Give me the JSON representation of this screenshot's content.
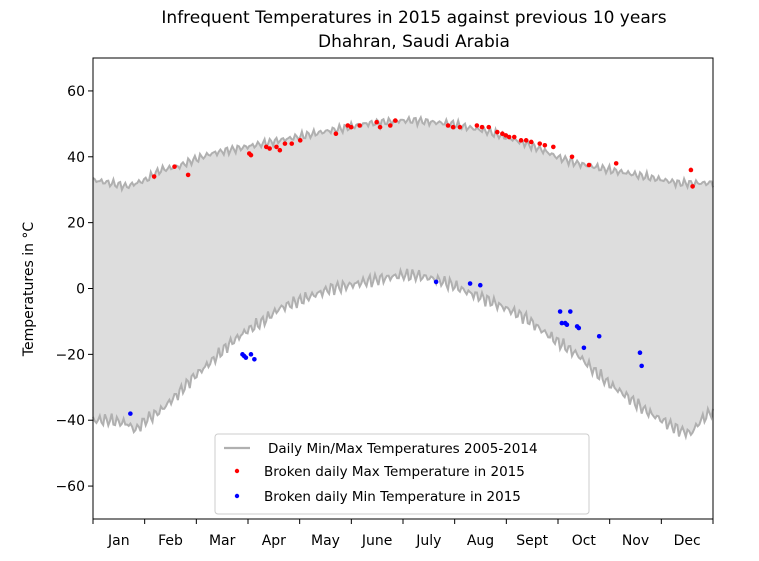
{
  "chart_data": {
    "type": "line+scatter",
    "title": "Infrequent Temperatures in 2015 against previous 10 years",
    "subtitle": "Dhahran, Saudi Arabia",
    "ylabel": "Temperatures in °C",
    "xlabel": "",
    "xlim": [
      0,
      365
    ],
    "ylim": [
      -70,
      70
    ],
    "yticks": [
      -60,
      -40,
      -20,
      0,
      20,
      40,
      60
    ],
    "months": [
      "Jan",
      "Feb",
      "Mar",
      "Apr",
      "May",
      "June",
      "July",
      "Aug",
      "Sept",
      "Oct",
      "Nov",
      "Dec"
    ],
    "grid": false,
    "legend_position": "lower-center",
    "fill_color": "#dddddd",
    "colors": {
      "minmax_line": "#b0b0b0",
      "max_2015": "#ff0000",
      "min_2015": "#0000ff"
    },
    "legend": [
      "Daily Min/Max Temperatures 2005-2014",
      "Broken daily Max Temperature in 2015",
      "Broken daily Min Temperature in 2015"
    ],
    "series": [
      {
        "name": "Daily Min/Max Temperatures 2005-2014",
        "kind": "band",
        "max_anchors": [
          [
            0,
            33
          ],
          [
            10,
            32
          ],
          [
            20,
            31
          ],
          [
            31,
            33
          ],
          [
            40,
            36
          ],
          [
            50,
            37
          ],
          [
            59,
            39
          ],
          [
            70,
            41
          ],
          [
            80,
            42
          ],
          [
            90,
            43
          ],
          [
            100,
            44
          ],
          [
            110,
            45
          ],
          [
            120,
            46
          ],
          [
            130,
            47
          ],
          [
            140,
            48
          ],
          [
            151,
            49
          ],
          [
            160,
            50
          ],
          [
            170,
            50.5
          ],
          [
            181,
            51
          ],
          [
            190,
            51
          ],
          [
            200,
            50.5
          ],
          [
            212,
            50
          ],
          [
            220,
            49
          ],
          [
            230,
            48
          ],
          [
            243,
            46
          ],
          [
            255,
            44
          ],
          [
            265,
            42
          ],
          [
            273,
            40
          ],
          [
            285,
            38
          ],
          [
            295,
            37
          ],
          [
            304,
            36
          ],
          [
            315,
            35
          ],
          [
            325,
            34
          ],
          [
            335,
            33
          ],
          [
            345,
            32
          ],
          [
            365,
            32
          ]
        ],
        "min_anchors": [
          [
            0,
            -40
          ],
          [
            10,
            -40
          ],
          [
            20,
            -41
          ],
          [
            25,
            -43
          ],
          [
            31,
            -40
          ],
          [
            40,
            -37
          ],
          [
            50,
            -32
          ],
          [
            59,
            -27
          ],
          [
            70,
            -22
          ],
          [
            80,
            -17
          ],
          [
            90,
            -13
          ],
          [
            100,
            -10
          ],
          [
            110,
            -6
          ],
          [
            120,
            -4
          ],
          [
            130,
            -2
          ],
          [
            140,
            0
          ],
          [
            151,
            1
          ],
          [
            160,
            2
          ],
          [
            170,
            3
          ],
          [
            181,
            4
          ],
          [
            190,
            4
          ],
          [
            200,
            3
          ],
          [
            212,
            1
          ],
          [
            220,
            -1
          ],
          [
            230,
            -3
          ],
          [
            243,
            -6
          ],
          [
            255,
            -9
          ],
          [
            265,
            -13
          ],
          [
            273,
            -16
          ],
          [
            285,
            -20
          ],
          [
            295,
            -25
          ],
          [
            304,
            -29
          ],
          [
            315,
            -33
          ],
          [
            325,
            -37
          ],
          [
            335,
            -40
          ],
          [
            345,
            -43
          ],
          [
            352,
            -44
          ],
          [
            358,
            -40
          ],
          [
            365,
            -37
          ]
        ]
      },
      {
        "name": "Broken daily Max Temperature in 2015",
        "kind": "scatter",
        "points": [
          [
            36,
            34
          ],
          [
            48,
            37
          ],
          [
            56,
            34.5
          ],
          [
            92,
            41
          ],
          [
            93,
            40.5
          ],
          [
            102,
            43
          ],
          [
            104,
            42.5
          ],
          [
            108,
            43
          ],
          [
            110,
            42
          ],
          [
            113,
            44
          ],
          [
            117,
            44
          ],
          [
            122,
            45
          ],
          [
            143,
            47
          ],
          [
            150,
            49.5
          ],
          [
            152,
            49
          ],
          [
            157,
            49.5
          ],
          [
            167,
            50.5
          ],
          [
            169,
            49
          ],
          [
            175,
            49.5
          ],
          [
            178,
            51
          ],
          [
            209,
            49.5
          ],
          [
            212,
            49
          ],
          [
            216,
            49
          ],
          [
            226,
            49.5
          ],
          [
            229,
            49
          ],
          [
            233,
            49
          ],
          [
            238,
            47.5
          ],
          [
            241,
            47
          ],
          [
            243,
            46.5
          ],
          [
            245,
            46
          ],
          [
            248,
            46
          ],
          [
            252,
            45
          ],
          [
            255,
            45
          ],
          [
            258,
            44.5
          ],
          [
            263,
            44
          ],
          [
            266,
            43.5
          ],
          [
            271,
            43
          ],
          [
            282,
            40
          ],
          [
            292,
            37.5
          ],
          [
            308,
            38
          ],
          [
            352,
            36
          ],
          [
            353,
            31
          ]
        ]
      },
      {
        "name": "Broken daily Min Temperature in 2015",
        "kind": "scatter",
        "points": [
          [
            22,
            -38
          ],
          [
            88,
            -20
          ],
          [
            89,
            -20.5
          ],
          [
            90,
            -21
          ],
          [
            93,
            -20
          ],
          [
            95,
            -21.5
          ],
          [
            202,
            2
          ],
          [
            222,
            1.5
          ],
          [
            228,
            1
          ],
          [
            275,
            -7
          ],
          [
            276,
            -10.5
          ],
          [
            278,
            -10.5
          ],
          [
            279,
            -11
          ],
          [
            281,
            -7
          ],
          [
            285,
            -11.5
          ],
          [
            286,
            -12
          ],
          [
            289,
            -18
          ],
          [
            298,
            -14.5
          ],
          [
            322,
            -19.5
          ],
          [
            323,
            -23.5
          ]
        ]
      }
    ]
  }
}
